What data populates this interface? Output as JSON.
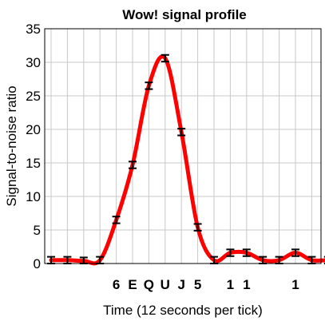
{
  "chart_data": {
    "type": "line",
    "title": "Wow! signal profile",
    "xlabel": "Time (12 seconds per tick)",
    "ylabel": "Signal-to-noise ratio",
    "ylim": [
      0,
      35
    ],
    "yticks": [
      "0",
      "5",
      "10",
      "15",
      "20",
      "25",
      "30",
      "35"
    ],
    "x": [
      0,
      1,
      2,
      3,
      4,
      5,
      6,
      7,
      8,
      9,
      10,
      11,
      12,
      13,
      14,
      15,
      16,
      17
    ],
    "tick_codes": [
      "",
      "",
      "",
      "",
      "6",
      "E",
      "Q",
      "U",
      "J",
      "5",
      "",
      "1",
      "1",
      "",
      "",
      "1",
      "",
      ""
    ],
    "series": [
      {
        "values": [
          0.5,
          0.5,
          0.4,
          0.5,
          6.5,
          14.7,
          26.5,
          30.6,
          19.6,
          5.4,
          0.5,
          1.6,
          1.6,
          0.5,
          0.5,
          1.6,
          0.5,
          0.5
        ],
        "error": 0.5,
        "color": "#ff0000"
      }
    ],
    "grid": true
  }
}
